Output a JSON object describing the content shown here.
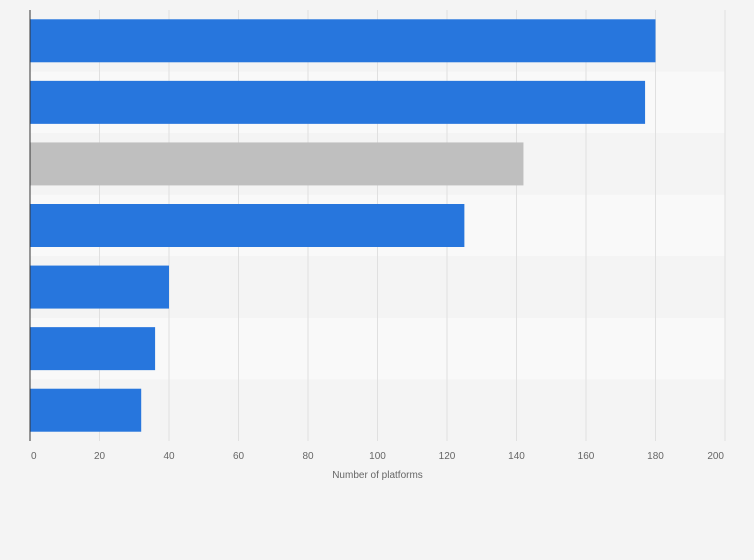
{
  "chart_data": {
    "type": "bar",
    "orientation": "horizontal",
    "categories": [
      "",
      "",
      "",
      "",
      "",
      "",
      ""
    ],
    "values": [
      180,
      177,
      142,
      125,
      40,
      36,
      32
    ],
    "colors": [
      "#2776dd",
      "#2776dd",
      "#bfbfbf",
      "#2776dd",
      "#2776dd",
      "#2776dd",
      "#2776dd"
    ],
    "xlabel": "Number of platforms",
    "ylabel": "",
    "xlim": [
      0,
      200
    ],
    "xticks": [
      0,
      20,
      40,
      60,
      80,
      100,
      120,
      140,
      160,
      180,
      200
    ],
    "grid": "vertical",
    "legend": "none"
  },
  "style": {
    "background": "#f4f4f4",
    "band_light": "#f9f9f9",
    "band_dark": "#f4f4f4",
    "grid_color": "#e0e0e0",
    "axis_color": "#333333",
    "primary_bar": "#2776dd",
    "highlight_bar": "#bfbfbf"
  }
}
